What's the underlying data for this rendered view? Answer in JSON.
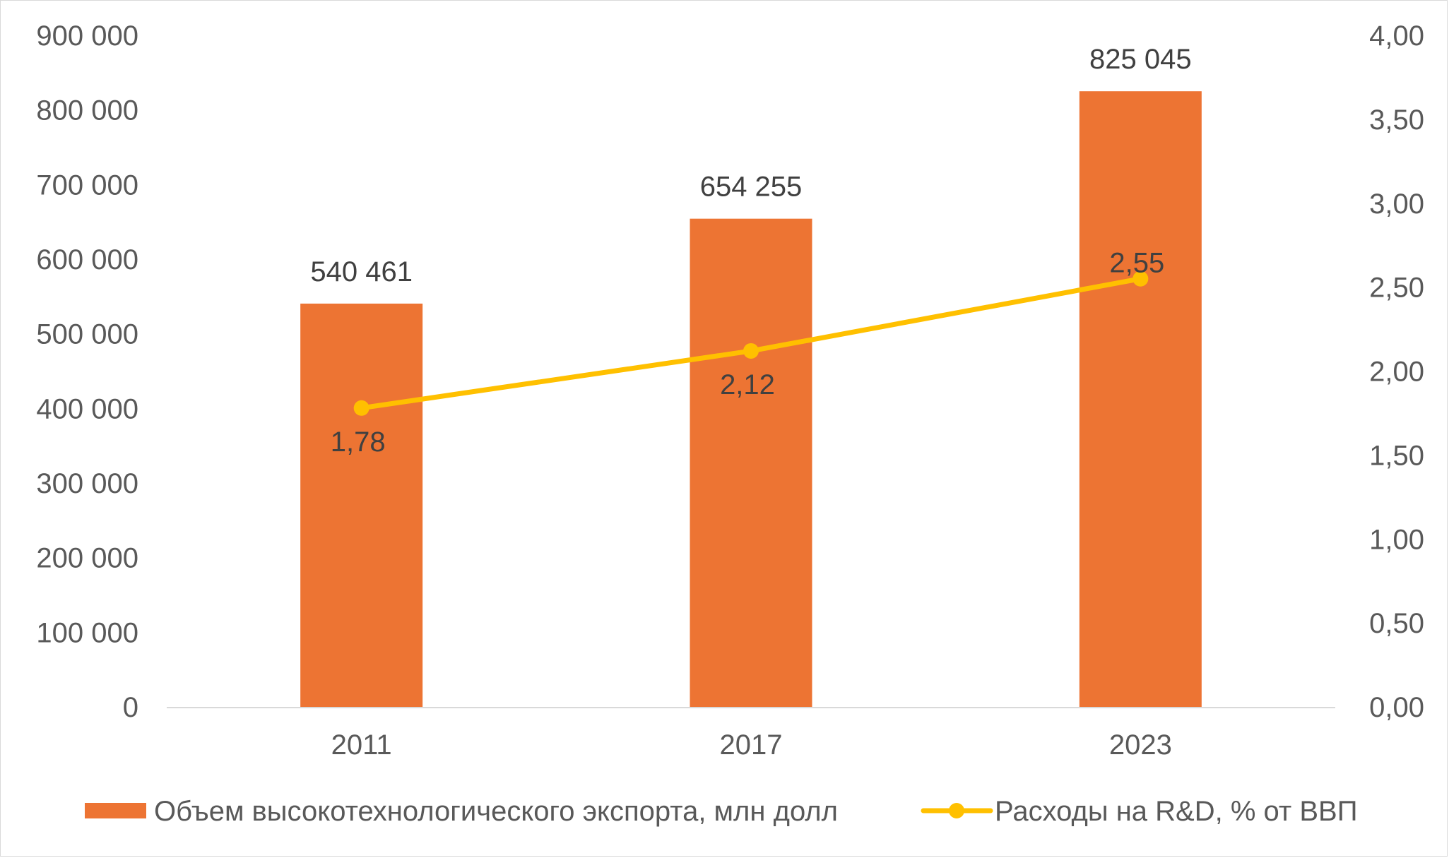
{
  "chart_data": {
    "type": "bar",
    "categories": [
      "2011",
      "2017",
      "2023"
    ],
    "series": [
      {
        "name": "Объем высокотехнологического экспорта, млн долл",
        "type": "bar",
        "axis": "left",
        "values": [
          540461,
          654255,
          825045
        ],
        "value_labels": [
          "540 461",
          "654 255",
          "825 045"
        ],
        "color": "#ED7433"
      },
      {
        "name": "Расходы на R&D, % от ВВП",
        "type": "line",
        "axis": "right",
        "values": [
          1.78,
          2.12,
          2.55
        ],
        "value_labels": [
          "1,78",
          "2,12",
          "2,55"
        ],
        "color": "#FFC000"
      }
    ],
    "title": "",
    "xlabel": "",
    "ylabel": "",
    "y_left": {
      "min": 0,
      "max": 900000,
      "tick_labels": [
        "0",
        "100 000",
        "200 000",
        "300 000",
        "400 000",
        "500 000",
        "600 000",
        "700 000",
        "800 000",
        "900 000"
      ]
    },
    "y_right": {
      "min": 0,
      "max": 4,
      "tick_labels": [
        "0,00",
        "0,50",
        "1,00",
        "1,50",
        "2,00",
        "2,50",
        "3,00",
        "3,50",
        "4,00"
      ]
    },
    "grid": false,
    "legend_position": "bottom"
  }
}
